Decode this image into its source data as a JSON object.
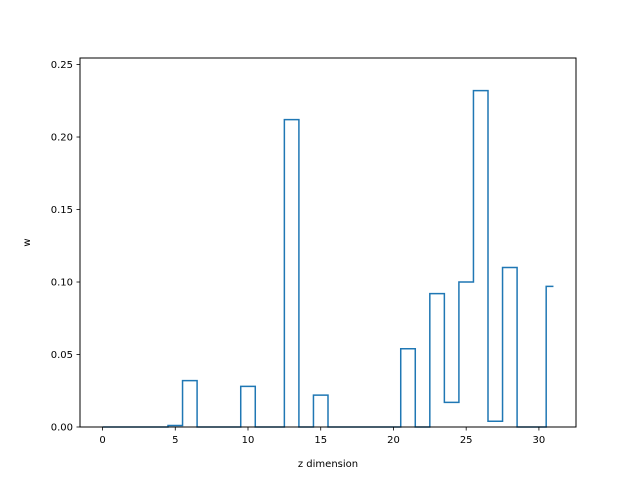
{
  "chart_data": {
    "type": "line",
    "style": "step",
    "title": "",
    "xlabel": "z dimension",
    "ylabel": "w",
    "xlim": [
      -1.55,
      32.55
    ],
    "ylim": [
      0,
      0.2545
    ],
    "xticks": [
      0,
      5,
      10,
      15,
      20,
      25,
      30
    ],
    "yticks": [
      0.0,
      0.05,
      0.1,
      0.15,
      0.2,
      0.25
    ],
    "ytick_labels": [
      "0.00",
      "0.05",
      "0.10",
      "0.15",
      "0.20",
      "0.25"
    ],
    "grid": false,
    "color": "#1f77b4",
    "x": [
      0,
      1,
      2,
      3,
      4,
      5,
      6,
      7,
      8,
      9,
      10,
      11,
      12,
      13,
      14,
      15,
      16,
      17,
      18,
      19,
      20,
      21,
      22,
      23,
      24,
      25,
      26,
      27,
      28,
      29,
      30,
      31
    ],
    "values": [
      0,
      0,
      0,
      0,
      0,
      0.001,
      0.032,
      0,
      0,
      0,
      0.028,
      0,
      0,
      0.212,
      0,
      0.022,
      0,
      0,
      0,
      0,
      0,
      0.054,
      0,
      0.092,
      0.017,
      0.1,
      0.232,
      0.004,
      0.11,
      0,
      0,
      0.097
    ]
  }
}
